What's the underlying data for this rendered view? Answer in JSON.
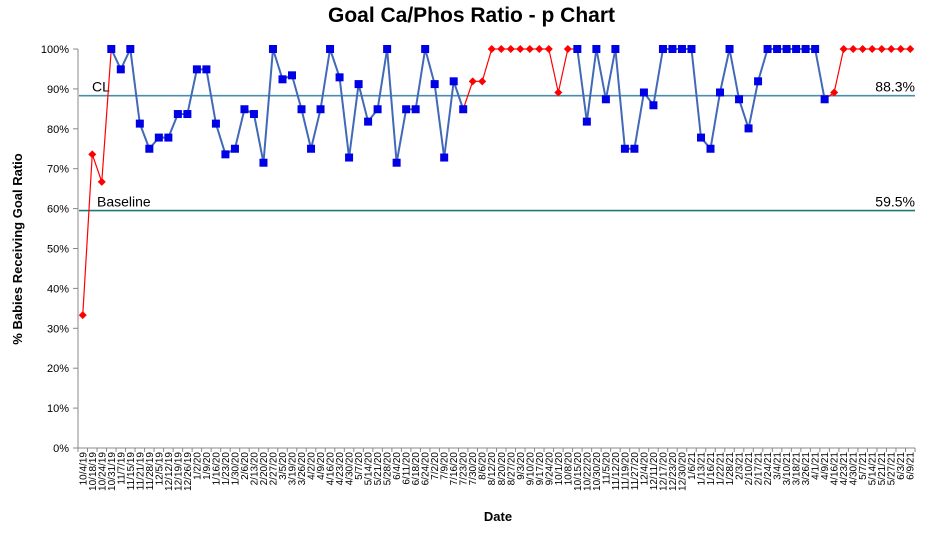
{
  "chart_data": {
    "type": "line",
    "title": "Goal Ca/Phos Ratio - p Chart",
    "xlabel": "Date",
    "ylabel": "% Babies Receiving Goal Ratio",
    "ylim": [
      0,
      100
    ],
    "y_ticks": [
      "0%",
      "10%",
      "20%",
      "30%",
      "40%",
      "50%",
      "60%",
      "70%",
      "80%",
      "90%",
      "100%"
    ],
    "x_tick_labels": [
      "10/4/19",
      "10/18/19",
      "10/24/19",
      "10/31/19",
      "11/7/19",
      "11/15/19",
      "11/21/19",
      "11/28/19",
      "12/5/19",
      "12/12/19",
      "12/19/19",
      "12/26/19",
      "1/2/20",
      "1/9/20",
      "1/16/20",
      "1/23/20",
      "1/30/20",
      "2/6/20",
      "2/13/20",
      "2/20/20",
      "2/27/20",
      "3/5/20",
      "3/19/20",
      "3/26/20",
      "4/2/20",
      "4/9/20",
      "4/16/20",
      "4/23/20",
      "4/30/20",
      "5/7/20",
      "5/14/20",
      "5/21/20",
      "5/28/20",
      "6/4/20",
      "6/11/20",
      "6/18/20",
      "6/24/20",
      "7/2/20",
      "7/9/20",
      "7/16/20",
      "7/23/20",
      "7/30/20",
      "8/6/20",
      "8/12/20",
      "8/20/20",
      "8/27/20",
      "9/3/20",
      "9/10/20",
      "9/17/20",
      "9/24/20",
      "10/1/20",
      "10/8/20",
      "10/15/20",
      "10/22/20",
      "10/30/20",
      "11/5/20",
      "11/12/20",
      "11/19/20",
      "11/27/20",
      "12/4/20",
      "12/11/20",
      "12/17/20",
      "12/23/20",
      "12/30/20",
      "1/6/21",
      "1/13/21",
      "1/16/21",
      "1/22/21",
      "1/28/21",
      "2/3/21",
      "2/10/21",
      "2/17/21",
      "2/24/21",
      "3/4/21",
      "3/10/21",
      "3/18/21",
      "3/26/21",
      "4/1/21",
      "4/9/21",
      "4/16/21",
      "4/23/21",
      "4/30/21",
      "5/7/21",
      "5/14/21",
      "5/21/21",
      "5/27/21",
      "6/3/21",
      "6/9/21"
    ],
    "series": [
      {
        "values": [
          33.3,
          73.6,
          66.7,
          100,
          94.9,
          100,
          81.3,
          75,
          77.8,
          77.8,
          83.7,
          83.7,
          94.9,
          94.9,
          81.3,
          73.6,
          75,
          84.9,
          83.7,
          71.5,
          100,
          92.4,
          93.4,
          84.9,
          75,
          84.9,
          100,
          92.9,
          72.8,
          91.2,
          81.8,
          84.9,
          100,
          71.5,
          84.9,
          84.9,
          100,
          91.2,
          72.8,
          91.9,
          84.9,
          91.9,
          91.9,
          100,
          100,
          100,
          100,
          100,
          100,
          100,
          89.1,
          100,
          100,
          81.8,
          100,
          87.4,
          100,
          75,
          75,
          89.1,
          85.9,
          100,
          100,
          100,
          100,
          77.8,
          75,
          89.1,
          100,
          87.4,
          80.1,
          91.9,
          100,
          100,
          100,
          100,
          100,
          100,
          87.4,
          89.1,
          100,
          100,
          100,
          100,
          100,
          100,
          100,
          100
        ],
        "color": "#4169b8"
      }
    ],
    "point_styles": [
      "d",
      "d",
      "d",
      "s",
      "s",
      "s",
      "s",
      "s",
      "s",
      "s",
      "s",
      "s",
      "s",
      "s",
      "s",
      "s",
      "s",
      "s",
      "s",
      "s",
      "s",
      "s",
      "s",
      "s",
      "s",
      "s",
      "s",
      "s",
      "s",
      "s",
      "s",
      "s",
      "s",
      "s",
      "s",
      "s",
      "s",
      "s",
      "s",
      "s",
      "s",
      "d",
      "d",
      "d",
      "d",
      "d",
      "d",
      "d",
      "d",
      "d",
      "d",
      "d",
      "s",
      "s",
      "s",
      "s",
      "s",
      "s",
      "s",
      "s",
      "s",
      "s",
      "s",
      "s",
      "s",
      "s",
      "s",
      "s",
      "s",
      "s",
      "s",
      "s",
      "s",
      "s",
      "s",
      "s",
      "s",
      "s",
      "s",
      "d",
      "d",
      "d",
      "d",
      "d",
      "d",
      "d",
      "d",
      "d"
    ],
    "marker_colors": {
      "square": "#0000e6",
      "diamond": "#ff0000",
      "line": "#4169b8",
      "red_line": "#ff0000"
    },
    "reference_lines": [
      {
        "label": "CL",
        "value_label": "88.3%",
        "value": 88.3,
        "color": "#4a8cae"
      },
      {
        "label": "Baseline",
        "value_label": "59.5%",
        "value": 59.5,
        "color": "#1f7a7a"
      }
    ],
    "grid": false,
    "legend": "none"
  }
}
